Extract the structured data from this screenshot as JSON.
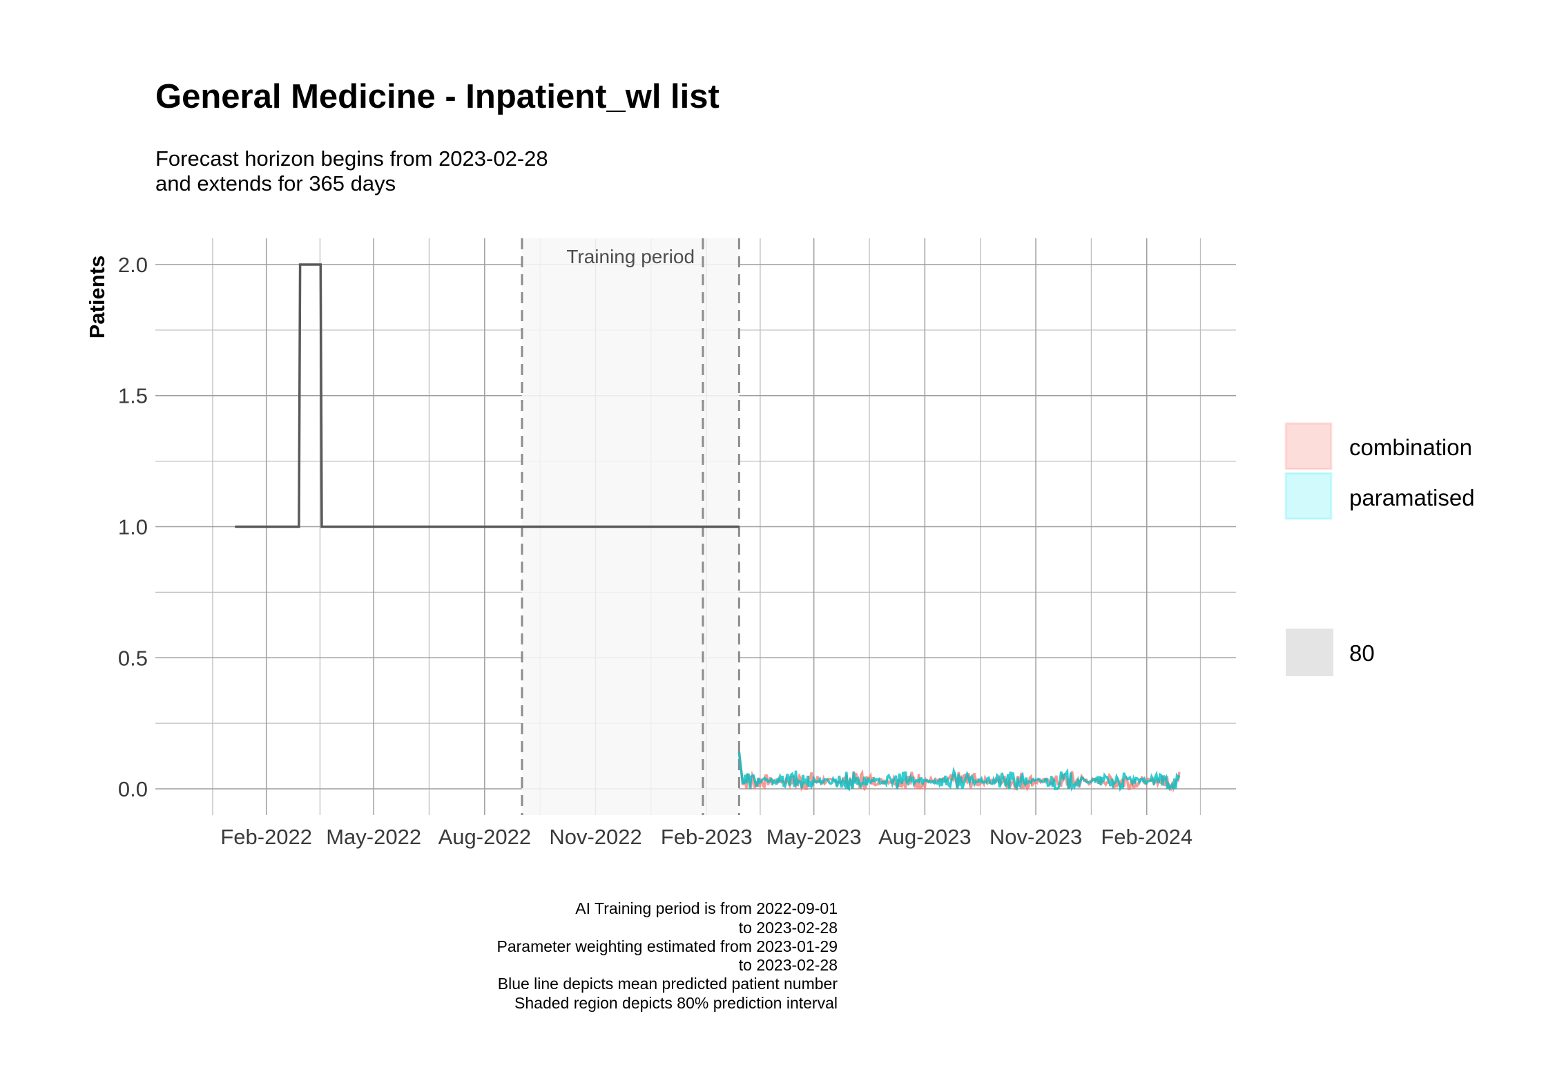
{
  "title": "General Medicine - Inpatient_wl list",
  "subtitle_lines": [
    "Forecast horizon begins from 2023-02-28",
    "and extends for 365 days"
  ],
  "caption_lines": [
    "AI Training period is from 2022-09-01",
    "to 2023-02-28",
    "Parameter weighting estimated from 2023-01-29",
    "to 2023-02-28",
    "Blue line depicts mean predicted patient number",
    "Shaded region depicts 80% prediction interval"
  ],
  "chart_data": {
    "type": "line",
    "ylabel": "Patients",
    "xlabel": "",
    "ylim": [
      -0.1,
      2.1
    ],
    "xlim": [
      "2021-11-01",
      "2024-04-15"
    ],
    "x_ticks": [
      "2022-02-01",
      "2022-05-01",
      "2022-08-01",
      "2022-11-01",
      "2023-02-01",
      "2023-05-01",
      "2023-08-01",
      "2023-11-01",
      "2024-02-01"
    ],
    "x_tick_labels": [
      "Feb-2022",
      "May-2022",
      "Aug-2022",
      "Nov-2022",
      "Feb-2023",
      "May-2023",
      "Aug-2023",
      "Nov-2023",
      "Feb-2024"
    ],
    "y_ticks": [
      0.0,
      0.5,
      1.0,
      1.5,
      2.0
    ],
    "y_tick_labels": [
      "0.0",
      "0.5",
      "1.0",
      "1.5",
      "2.0"
    ],
    "grid": true,
    "shaded_regions": [
      {
        "label": "Training period",
        "start": "2022-09-01",
        "end": "2023-02-28",
        "color": "#f7f7f7"
      }
    ],
    "vlines": [
      "2022-09-01",
      "2023-01-29",
      "2023-02-28"
    ],
    "observed": {
      "color": "#595959",
      "x": [
        "2022-01-06",
        "2022-02-28",
        "2022-03-01",
        "2022-03-18",
        "2022-03-19",
        "2023-02-28"
      ],
      "y": [
        1,
        1,
        2,
        2,
        1,
        1
      ]
    },
    "series": [
      {
        "name": "combination",
        "color": "#f8766d",
        "x_start": "2023-02-28",
        "x_end": "2024-02-28",
        "mean_level": 0.03,
        "amplitude": 0.04
      },
      {
        "name": "paramatised",
        "color": "#00bfc4",
        "x_start": "2023-02-28",
        "x_end": "2024-02-28",
        "mean_level": 0.03,
        "amplitude": 0.04
      }
    ],
    "legend": {
      "position": "right",
      "entries": [
        {
          "label": "combination",
          "color": "#f8766d"
        },
        {
          "label": "paramatised",
          "color": "#00bfc4"
        }
      ],
      "interval_label": "80"
    }
  }
}
